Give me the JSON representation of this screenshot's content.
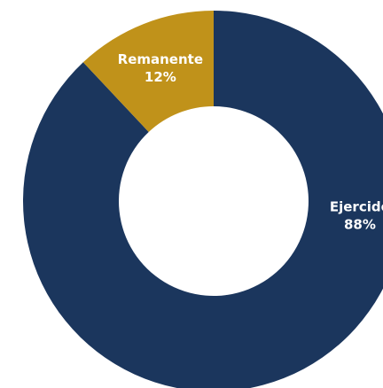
{
  "chart_data": {
    "type": "pie",
    "subtype": "donut",
    "categories": [
      "Ejercido",
      "Remanente"
    ],
    "values": [
      88,
      12
    ],
    "value_labels": [
      "88%",
      "12%"
    ],
    "colors": [
      "#1b365d",
      "#c0921a"
    ],
    "start_angle_deg": 0,
    "direction": "clockwise",
    "title": "",
    "legend": "none"
  }
}
